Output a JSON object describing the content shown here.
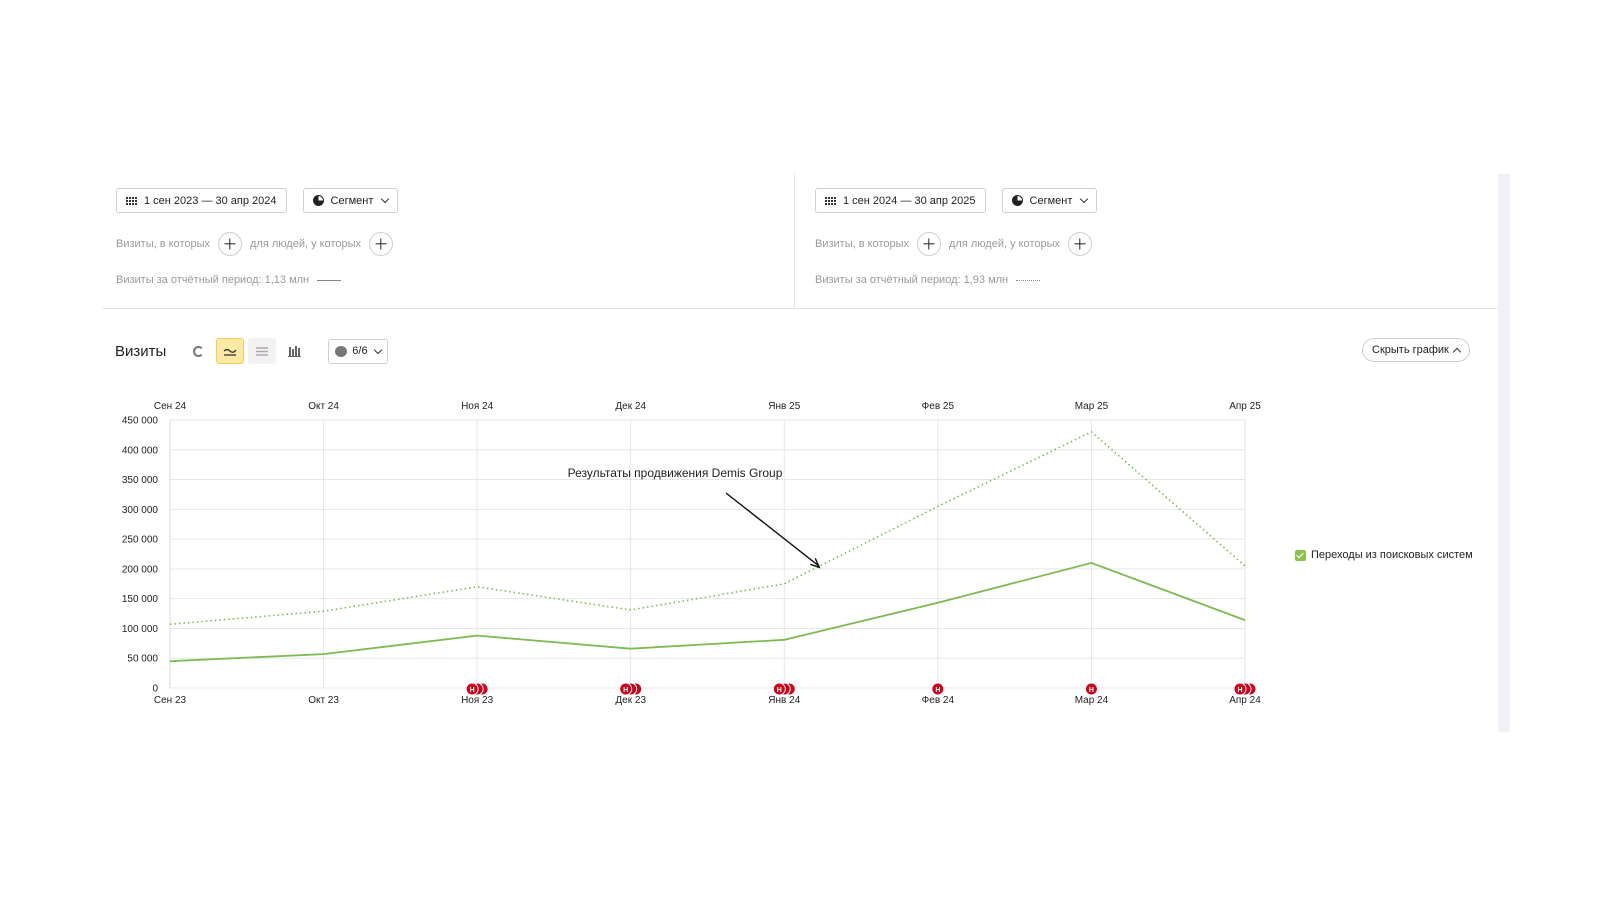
{
  "left_panel": {
    "date_range": "1 сен 2023 — 30 апр 2024",
    "segment_label": "Сегмент",
    "visits_filter": "Визиты, в которых",
    "people_filter": "для людей, у которых",
    "period_total": "Визиты за отчётный период: 1,13 млн"
  },
  "right_panel": {
    "date_range": "1 сен 2024 — 30 апр 2025",
    "segment_label": "Сегмент",
    "visits_filter": "Визиты, в которых",
    "people_filter": "для людей, у которых",
    "period_total": "Визиты за отчётный период: 1,93 млн"
  },
  "toolbar": {
    "title": "Визиты",
    "series_count": "6/6",
    "hide_chart_label": "Скрыть график"
  },
  "colors": {
    "series": "#7dba52",
    "accent_active": "#fde9a3",
    "marker": "#d0021b"
  },
  "chart_data": {
    "type": "line",
    "x_top": [
      "Сен 24",
      "Окт 24",
      "Ноя 24",
      "Дек 24",
      "Янв 25",
      "Фев 25",
      "Мар 25",
      "Апр 25"
    ],
    "x_bottom": [
      "Сен 23",
      "Окт 23",
      "Ноя 23",
      "Дек 23",
      "Янв 24",
      "Фев 24",
      "Мар 24",
      "Апр 24"
    ],
    "y_ticks": [
      "0",
      "50 000",
      "100 000",
      "150 000",
      "200 000",
      "250 000",
      "300 000",
      "350 000",
      "400 000",
      "450 000"
    ],
    "ylim": [
      0,
      450000
    ],
    "series": [
      {
        "period": "1 сен 2023 — 30 апр 2024",
        "style": "solid",
        "values": [
          45000,
          57000,
          88000,
          66000,
          81000,
          143000,
          210000,
          114000
        ]
      },
      {
        "period": "1 сен 2024 — 30 апр 2025",
        "style": "dotted",
        "values": [
          107000,
          129000,
          170000,
          131000,
          175000,
          305000,
          430000,
          205000
        ]
      }
    ],
    "legend": [
      {
        "name": "Переходы из поисковых систем",
        "checked": true
      }
    ],
    "annotation": "Результаты продвижения  Demis Group",
    "grid": true,
    "markers": [
      {
        "x_index": 2,
        "count": 3
      },
      {
        "x_index": 3,
        "count": 3
      },
      {
        "x_index": 4,
        "count": 3
      },
      {
        "x_index": 5,
        "count": 1
      },
      {
        "x_index": 6,
        "count": 1
      },
      {
        "x_index": 7,
        "count": 3
      }
    ],
    "marker_letter": "Н"
  }
}
